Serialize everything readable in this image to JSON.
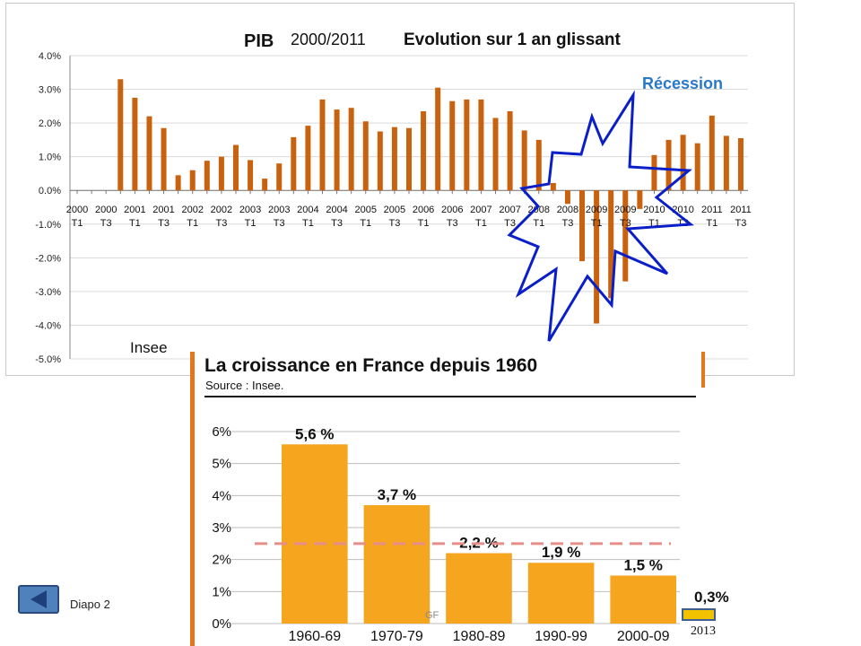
{
  "top_chart": {
    "title_left": "PIB",
    "title_period": "2000/2011",
    "title_right": "Evolution sur 1 an glissant",
    "source": "Insee",
    "annotation": "Récession"
  },
  "bottom_chart": {
    "title": "La croissance en France depuis 1960",
    "source": "Source : Insee."
  },
  "footer": {
    "nav_label": "Diapo 2",
    "watermark": "GF",
    "final_value": "0,3%",
    "final_year": "2013"
  },
  "colors": {
    "top_bar": "#c9620f",
    "bottom_bar": "#f5a51e",
    "recession_star": "#0a1fc8",
    "annotation_text": "#2a78c8",
    "dashed_line": "#e68f8a"
  },
  "chart_data": [
    {
      "type": "bar",
      "title": "PIB 2000/2011 Evolution sur 1 an glissant",
      "ylim": [
        -5,
        4
      ],
      "y_ticks": [
        "4.0%",
        "3.0%",
        "2.0%",
        "1.0%",
        "0.0%",
        "-1.0%",
        "-2.0%",
        "-3.0%",
        "-4.0%",
        "-5.0%"
      ],
      "tick_labels": [
        {
          "year": "2000",
          "q": "T1"
        },
        {
          "year": "2000",
          "q": "T3"
        },
        {
          "year": "2001",
          "q": "T1"
        },
        {
          "year": "2001",
          "q": "T3"
        },
        {
          "year": "2002",
          "q": "T1"
        },
        {
          "year": "2002",
          "q": "T3"
        },
        {
          "year": "2003",
          "q": "T1"
        },
        {
          "year": "2003",
          "q": "T3"
        },
        {
          "year": "2004",
          "q": "T1"
        },
        {
          "year": "2004",
          "q": "T3"
        },
        {
          "year": "2005",
          "q": "T1"
        },
        {
          "year": "2005",
          "q": "T3"
        },
        {
          "year": "2006",
          "q": "T1"
        },
        {
          "year": "2006",
          "q": "T3"
        },
        {
          "year": "2007",
          "q": "T1"
        },
        {
          "year": "2007",
          "q": "T3"
        },
        {
          "year": "2008",
          "q": "T1"
        },
        {
          "year": "2008",
          "q": "T3"
        },
        {
          "year": "2009",
          "q": "T1"
        },
        {
          "year": "2009",
          "q": "T3"
        },
        {
          "year": "2010",
          "q": "T1"
        },
        {
          "year": "2010",
          "q": "T3"
        },
        {
          "year": "2011",
          "q": "T1"
        },
        {
          "year": "2011",
          "q": "T3"
        }
      ],
      "values": [
        0,
        0,
        0,
        3.3,
        2.75,
        2.2,
        1.85,
        0.45,
        0.6,
        0.88,
        1.0,
        1.35,
        0.9,
        0.35,
        0.8,
        1.58,
        1.92,
        2.7,
        2.4,
        2.45,
        2.05,
        1.75,
        1.88,
        1.85,
        2.35,
        3.05,
        2.65,
        2.7,
        2.7,
        2.15,
        2.35,
        1.78,
        1.5,
        0.22,
        -0.4,
        -2.1,
        -3.95,
        -3.2,
        -2.7,
        -0.55,
        1.05,
        1.5,
        1.65,
        1.4,
        2.22,
        1.62,
        1.55
      ]
    },
    {
      "type": "bar",
      "title": "La croissance en France depuis 1960",
      "categories": [
        "1960-69",
        "1970-79",
        "1980-89",
        "1990-99",
        "2000-09"
      ],
      "values": [
        5.6,
        3.7,
        2.2,
        1.9,
        1.5
      ],
      "data_labels": [
        "5,6 %",
        "3,7 %",
        "2,2 %",
        "1,9 %",
        "1,5 %"
      ],
      "y_ticks": [
        "6%",
        "5%",
        "4%",
        "3%",
        "2%",
        "1%",
        "0%"
      ],
      "ylim": [
        0,
        6
      ],
      "reference_line": 2.5
    }
  ]
}
